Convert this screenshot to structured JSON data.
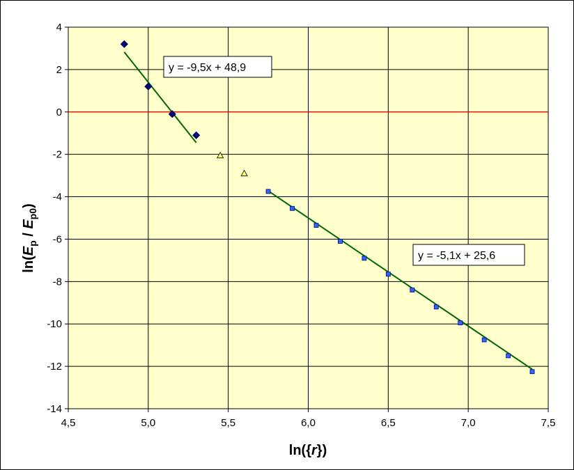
{
  "chart_data": {
    "type": "scatter",
    "title": "",
    "xlabel": {
      "prefix": "ln({",
      "var": "r",
      "suffix": "})"
    },
    "ylabel": {
      "prefix": "ln(",
      "num": "E",
      "num_sub": "p",
      "sep": " / ",
      "den": "E",
      "den_sub": "p0",
      "suffix": ")"
    },
    "xlim": [
      4.5,
      7.5
    ],
    "ylim": [
      -14,
      4
    ],
    "x_ticks": [
      "4,5",
      "5,0",
      "5,5",
      "6,0",
      "6,5",
      "7,0",
      "7,5"
    ],
    "x_tick_values": [
      4.5,
      5.0,
      5.5,
      6.0,
      6.5,
      7.0,
      7.5
    ],
    "y_ticks": [
      "4",
      "2",
      "0",
      "-2",
      "-4",
      "-6",
      "-8",
      "-10",
      "-12",
      "-14"
    ],
    "y_tick_values": [
      4,
      2,
      0,
      -2,
      -4,
      -6,
      -8,
      -10,
      -12,
      -14
    ],
    "grid": true,
    "plot_background": "#ffffcc",
    "zero_line_color": "#ff0000",
    "series": [
      {
        "marker": "diamond",
        "color": "#000080",
        "points": [
          [
            4.85,
            3.2
          ],
          [
            5.0,
            1.2
          ],
          [
            5.15,
            -0.1
          ],
          [
            5.3,
            -1.1
          ]
        ]
      },
      {
        "marker": "triangle",
        "color": "#ffff66",
        "points": [
          [
            5.45,
            -2.05
          ],
          [
            5.6,
            -2.9
          ]
        ]
      },
      {
        "marker": "square",
        "color": "#3366ff",
        "points": [
          [
            5.75,
            -3.75
          ],
          [
            5.9,
            -4.55
          ],
          [
            6.05,
            -5.35
          ],
          [
            6.2,
            -6.1
          ],
          [
            6.35,
            -6.9
          ],
          [
            6.5,
            -7.65
          ],
          [
            6.65,
            -8.4
          ],
          [
            6.8,
            -9.2
          ],
          [
            6.95,
            -9.95
          ],
          [
            7.1,
            -10.75
          ],
          [
            7.25,
            -11.5
          ],
          [
            7.4,
            -12.25
          ]
        ]
      }
    ],
    "trendlines": [
      {
        "color": "#006600",
        "slope": -9.5,
        "intercept": 48.9,
        "x_range": [
          4.85,
          5.3
        ]
      },
      {
        "color": "#006600",
        "slope": -5.1,
        "intercept": 25.6,
        "x_range": [
          5.75,
          7.4
        ]
      }
    ],
    "annotations": [
      {
        "text": "y = -9,5x + 48,9"
      },
      {
        "text": "y = -5,1x + 25,6"
      }
    ]
  }
}
